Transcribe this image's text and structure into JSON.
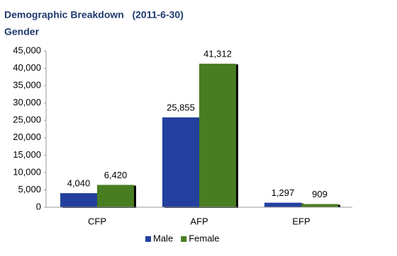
{
  "chart_data": {
    "type": "bar",
    "title": "Demographic Breakdown   (2011-6-30)",
    "subtitle": "Gender",
    "categories": [
      "CFP",
      "AFP",
      "EFP"
    ],
    "series": [
      {
        "name": "Male",
        "color": "#22409e",
        "values": [
          4040,
          25855,
          1297
        ],
        "value_labels": [
          "4,040",
          "25,855",
          "1,297"
        ]
      },
      {
        "name": "Female",
        "color": "#4a7d24",
        "values": [
          6420,
          41312,
          909
        ],
        "value_labels": [
          "6,420",
          "41,312",
          "909"
        ]
      }
    ],
    "ylim": [
      0,
      45000
    ],
    "yticks": [
      0,
      {
        "value": 5000,
        "label": "5,000"
      },
      {
        "value": 10000,
        "label": "10,000"
      },
      {
        "value": 15000,
        "label": "15,000"
      },
      {
        "value": 20000,
        "label": "20,000"
      },
      {
        "value": 25000,
        "label": "25,000"
      },
      {
        "value": 30000,
        "label": "30,000"
      },
      {
        "value": 35000,
        "label": "35,000"
      },
      {
        "value": 40000,
        "label": "40,000"
      },
      {
        "value": 45000,
        "label": "45,000"
      }
    ],
    "grid": false,
    "legend": "bottom"
  }
}
